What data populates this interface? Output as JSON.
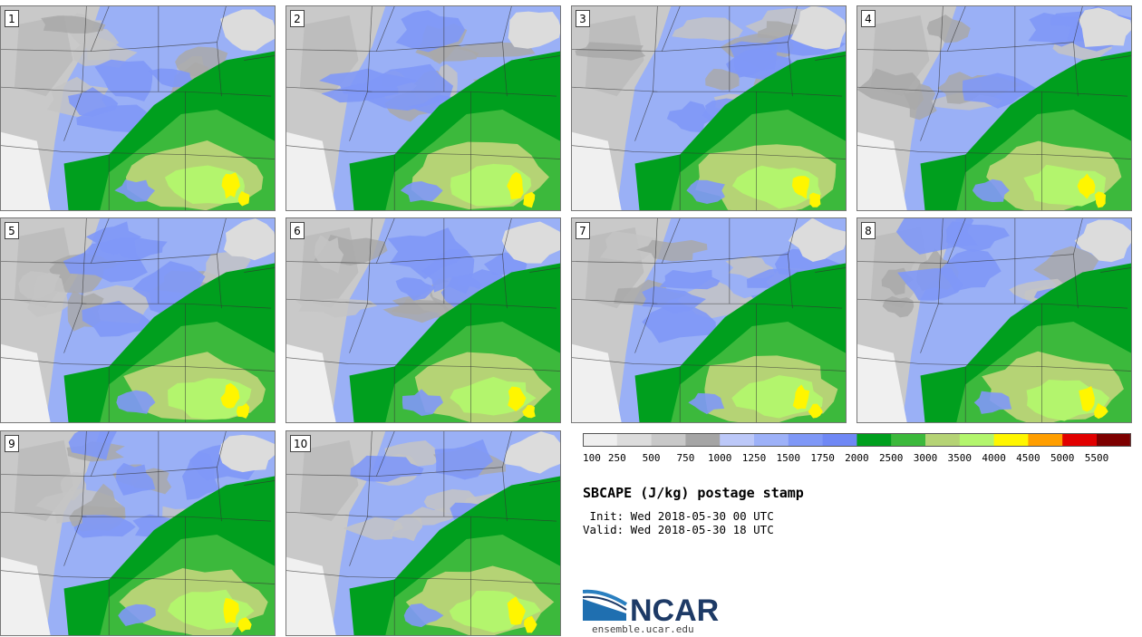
{
  "panels": [
    {
      "label": "1"
    },
    {
      "label": "2"
    },
    {
      "label": "3"
    },
    {
      "label": "4"
    },
    {
      "label": "5"
    },
    {
      "label": "6"
    },
    {
      "label": "7"
    },
    {
      "label": "8"
    },
    {
      "label": "9"
    },
    {
      "label": "10"
    }
  ],
  "colorbar": {
    "tick_labels": [
      "100",
      "250",
      "500",
      "750",
      "1000",
      "1250",
      "1500",
      "1750",
      "2000",
      "2500",
      "3000",
      "3500",
      "4000",
      "4500",
      "5000",
      "5500"
    ],
    "colors": [
      "#efefef",
      "#dcdcdc",
      "#c8c8c8",
      "#a5a5a5",
      "#bcc8f8",
      "#9db1f8",
      "#7f98f7",
      "#6f88f5",
      "#009f1e",
      "#3cb93c",
      "#b5d375",
      "#b3f56d",
      "#fff600",
      "#ff9e00",
      "#e10000",
      "#7d0000"
    ]
  },
  "header": {
    "title": "SBCAPE (J/kg) postage stamp",
    "init": " Init: Wed 2018-05-30 00 UTC",
    "valid": "Valid: Wed 2018-05-30 18 UTC"
  },
  "logo": {
    "text": "NCAR",
    "site": "ensemble.ucar.edu",
    "brand_color": "#1d3a66",
    "accent_color": "#2a7fc0"
  }
}
